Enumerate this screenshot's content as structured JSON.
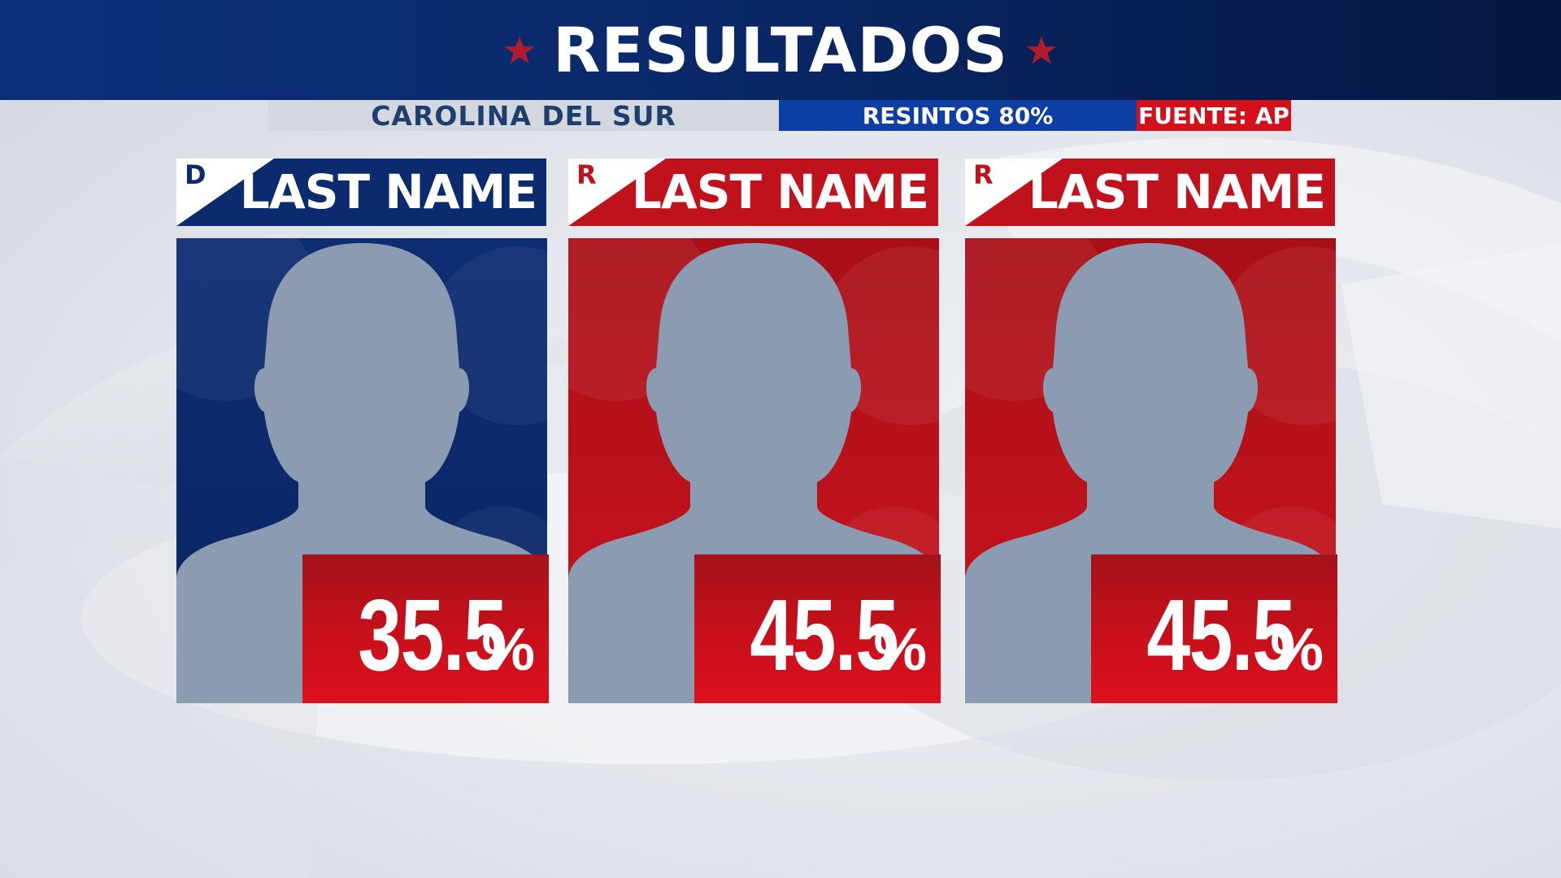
{
  "header": {
    "title": "RESULTADOS",
    "star_color": "#b01c2e",
    "banner_color": "#0a2a6b"
  },
  "info_bar": {
    "state": "CAROLINA DEL SUR",
    "precincts": "RESINTOS 80%",
    "source": "FUENTE: AP"
  },
  "candidates": [
    {
      "party": "D",
      "last_name": "LAST NAME",
      "percent": "35.5",
      "percent_sign": "%",
      "party_color": "#0c2b6e"
    },
    {
      "party": "R",
      "last_name": "LAST NAME",
      "percent": "45.5",
      "percent_sign": "%",
      "party_color": "#c0121c"
    },
    {
      "party": "R",
      "last_name": "LAST NAME",
      "percent": "45.5",
      "percent_sign": "%",
      "party_color": "#c0121c"
    }
  ],
  "icons": {
    "star": "star-icon",
    "silhouette": "person-silhouette-icon"
  }
}
